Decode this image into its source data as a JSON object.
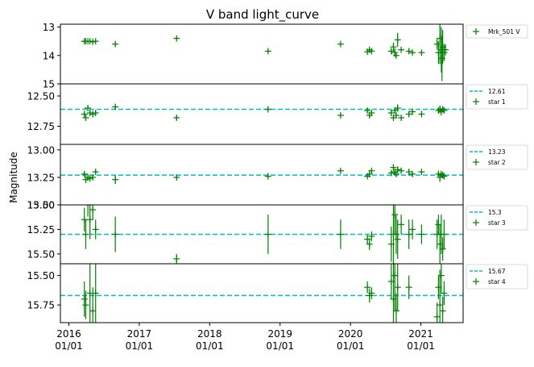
{
  "figure": {
    "title": "V band light_curve",
    "ylabel": "Magnitude",
    "x_tick_labels": [
      {
        "year": "2016",
        "day": "01/01",
        "date": 2016.0
      },
      {
        "year": "2017",
        "day": "01/01",
        "date": 2017.0
      },
      {
        "year": "2018",
        "day": "01/01",
        "date": 2018.0
      },
      {
        "year": "2019",
        "day": "01/01",
        "date": 2019.0
      },
      {
        "year": "2020",
        "day": "01/01",
        "date": 2020.0
      },
      {
        "year": "2021",
        "day": "01/01",
        "date": 2021.0
      }
    ],
    "x_range": [
      2015.88,
      2021.6
    ],
    "colors": {
      "points": "#008000",
      "reference": "#00bfbf",
      "frame": "#000000"
    }
  },
  "chart_data": [
    {
      "type": "scatter",
      "legend": {
        "placement": "outside-right",
        "entries": [
          "Mrk_501 V"
        ]
      },
      "ylim": [
        15.0,
        12.9
      ],
      "inverted_y": true,
      "y_ticks": [
        13,
        14,
        15
      ],
      "y_tick_labels": [
        "13",
        "14",
        "15"
      ],
      "reference_line": null,
      "series": [
        {
          "name": "Mrk_501 V",
          "points": [
            {
              "x": 2016.22,
              "y": 13.5,
              "err": 0.04
            },
            {
              "x": 2016.24,
              "y": 13.5,
              "err": 0.04
            },
            {
              "x": 2016.27,
              "y": 13.5,
              "err": 0.04
            },
            {
              "x": 2016.3,
              "y": 13.5,
              "err": 0.04
            },
            {
              "x": 2016.34,
              "y": 13.52,
              "err": 0.04
            },
            {
              "x": 2016.38,
              "y": 13.5,
              "err": 0.04
            },
            {
              "x": 2016.66,
              "y": 13.6,
              "err": 0.05
            },
            {
              "x": 2017.53,
              "y": 13.4,
              "err": 0.05
            },
            {
              "x": 2018.83,
              "y": 13.85,
              "err": 0.05
            },
            {
              "x": 2019.86,
              "y": 13.6,
              "err": 0.05
            },
            {
              "x": 2020.24,
              "y": 13.87,
              "err": 0.05
            },
            {
              "x": 2020.27,
              "y": 13.8,
              "err": 0.05
            },
            {
              "x": 2020.3,
              "y": 13.85,
              "err": 0.05
            },
            {
              "x": 2020.58,
              "y": 13.85,
              "err": 0.1
            },
            {
              "x": 2020.61,
              "y": 13.7,
              "err": 0.15
            },
            {
              "x": 2020.63,
              "y": 13.9,
              "err": 0.15
            },
            {
              "x": 2020.65,
              "y": 14.0,
              "err": 0.1
            },
            {
              "x": 2020.67,
              "y": 13.45,
              "err": 0.25
            },
            {
              "x": 2020.72,
              "y": 13.8,
              "err": 0.05
            },
            {
              "x": 2020.83,
              "y": 13.85,
              "err": 0.05
            },
            {
              "x": 2020.88,
              "y": 13.9,
              "err": 0.05
            },
            {
              "x": 2021.01,
              "y": 13.9,
              "err": 0.05
            },
            {
              "x": 2021.23,
              "y": 13.6,
              "err": 0.2
            },
            {
              "x": 2021.25,
              "y": 13.9,
              "err": 0.4
            },
            {
              "x": 2021.27,
              "y": 13.4,
              "err": 0.9
            },
            {
              "x": 2021.29,
              "y": 13.8,
              "err": 0.8
            },
            {
              "x": 2021.3,
              "y": 14.1,
              "err": 0.8
            },
            {
              "x": 2021.31,
              "y": 13.7,
              "err": 0.6
            },
            {
              "x": 2021.33,
              "y": 13.9,
              "err": 0.3
            },
            {
              "x": 2021.35,
              "y": 13.8,
              "err": 0.2
            }
          ]
        }
      ]
    },
    {
      "type": "scatter",
      "legend": {
        "placement": "outside-right",
        "entries": [
          "12.61",
          "star 1"
        ]
      },
      "ylim": [
        12.9,
        12.4
      ],
      "inverted_y": true,
      "y_ticks": [
        12.5,
        12.75
      ],
      "y_tick_labels": [
        "12.50",
        "12.75"
      ],
      "reference_line": {
        "name": "12.61",
        "y": 12.61
      },
      "series": [
        {
          "name": "star 1",
          "points": [
            {
              "x": 2016.22,
              "y": 12.65,
              "err": 0.02
            },
            {
              "x": 2016.24,
              "y": 12.68,
              "err": 0.02
            },
            {
              "x": 2016.27,
              "y": 12.6,
              "err": 0.02
            },
            {
              "x": 2016.3,
              "y": 12.64,
              "err": 0.02
            },
            {
              "x": 2016.34,
              "y": 12.65,
              "err": 0.02
            },
            {
              "x": 2016.38,
              "y": 12.64,
              "err": 0.02
            },
            {
              "x": 2016.66,
              "y": 12.59,
              "err": 0.02
            },
            {
              "x": 2017.53,
              "y": 12.68,
              "err": 0.02
            },
            {
              "x": 2018.83,
              "y": 12.61,
              "err": 0.02
            },
            {
              "x": 2019.86,
              "y": 12.66,
              "err": 0.02
            },
            {
              "x": 2020.24,
              "y": 12.62,
              "err": 0.02
            },
            {
              "x": 2020.27,
              "y": 12.66,
              "err": 0.02
            },
            {
              "x": 2020.3,
              "y": 12.64,
              "err": 0.02
            },
            {
              "x": 2020.58,
              "y": 12.64,
              "err": 0.02
            },
            {
              "x": 2020.61,
              "y": 12.68,
              "err": 0.02
            },
            {
              "x": 2020.63,
              "y": 12.62,
              "err": 0.02
            },
            {
              "x": 2020.65,
              "y": 12.66,
              "err": 0.02
            },
            {
              "x": 2020.67,
              "y": 12.6,
              "err": 0.03
            },
            {
              "x": 2020.72,
              "y": 12.68,
              "err": 0.02
            },
            {
              "x": 2020.83,
              "y": 12.65,
              "err": 0.02
            },
            {
              "x": 2020.88,
              "y": 12.63,
              "err": 0.02
            },
            {
              "x": 2021.01,
              "y": 12.65,
              "err": 0.02
            },
            {
              "x": 2021.25,
              "y": 12.62,
              "err": 0.02
            },
            {
              "x": 2021.27,
              "y": 12.61,
              "err": 0.03
            },
            {
              "x": 2021.29,
              "y": 12.63,
              "err": 0.03
            },
            {
              "x": 2021.31,
              "y": 12.61,
              "err": 0.02
            },
            {
              "x": 2021.33,
              "y": 12.62,
              "err": 0.02
            }
          ]
        }
      ]
    },
    {
      "type": "scatter",
      "legend": {
        "placement": "outside-right",
        "entries": [
          "13.23",
          "star 2"
        ]
      },
      "ylim": [
        13.5,
        12.95
      ],
      "inverted_y": true,
      "y_ticks": [
        13.0,
        13.25,
        13.5
      ],
      "y_tick_labels": [
        "13.00",
        "13.25",
        "13.50"
      ],
      "reference_line": {
        "name": "13.23",
        "y": 13.23
      },
      "series": [
        {
          "name": "star 2",
          "points": [
            {
              "x": 2016.22,
              "y": 13.22,
              "err": 0.02
            },
            {
              "x": 2016.24,
              "y": 13.27,
              "err": 0.03
            },
            {
              "x": 2016.27,
              "y": 13.25,
              "err": 0.03
            },
            {
              "x": 2016.3,
              "y": 13.26,
              "err": 0.02
            },
            {
              "x": 2016.34,
              "y": 13.25,
              "err": 0.02
            },
            {
              "x": 2016.38,
              "y": 13.2,
              "err": 0.02
            },
            {
              "x": 2016.66,
              "y": 13.27,
              "err": 0.04
            },
            {
              "x": 2017.53,
              "y": 13.25,
              "err": 0.02
            },
            {
              "x": 2018.83,
              "y": 13.24,
              "err": 0.03
            },
            {
              "x": 2019.86,
              "y": 13.19,
              "err": 0.02
            },
            {
              "x": 2020.24,
              "y": 13.24,
              "err": 0.02
            },
            {
              "x": 2020.27,
              "y": 13.22,
              "err": 0.02
            },
            {
              "x": 2020.3,
              "y": 13.19,
              "err": 0.02
            },
            {
              "x": 2020.58,
              "y": 13.21,
              "err": 0.02
            },
            {
              "x": 2020.61,
              "y": 13.16,
              "err": 0.03
            },
            {
              "x": 2020.63,
              "y": 13.2,
              "err": 0.02
            },
            {
              "x": 2020.65,
              "y": 13.22,
              "err": 0.02
            },
            {
              "x": 2020.67,
              "y": 13.18,
              "err": 0.03
            },
            {
              "x": 2020.72,
              "y": 13.19,
              "err": 0.02
            },
            {
              "x": 2020.83,
              "y": 13.2,
              "err": 0.02
            },
            {
              "x": 2020.88,
              "y": 13.22,
              "err": 0.02
            },
            {
              "x": 2021.01,
              "y": 13.2,
              "err": 0.02
            },
            {
              "x": 2021.25,
              "y": 13.22,
              "err": 0.03
            },
            {
              "x": 2021.27,
              "y": 13.25,
              "err": 0.04
            },
            {
              "x": 2021.29,
              "y": 13.22,
              "err": 0.03
            },
            {
              "x": 2021.31,
              "y": 13.23,
              "err": 0.03
            },
            {
              "x": 2021.33,
              "y": 13.24,
              "err": 0.02
            }
          ]
        }
      ]
    },
    {
      "type": "scatter",
      "legend": {
        "placement": "outside-right",
        "entries": [
          "15.3",
          "star 3"
        ]
      },
      "ylim": [
        15.6,
        15.0
      ],
      "inverted_y": true,
      "y_ticks": [
        15.0,
        15.25,
        15.5
      ],
      "y_tick_labels": [
        "15.00",
        "15.25",
        "15.50"
      ],
      "reference_line": {
        "name": "15.3",
        "y": 15.3
      },
      "series": [
        {
          "name": "star 3",
          "points": [
            {
              "x": 2016.22,
              "y": 15.15,
              "err": 0.12
            },
            {
              "x": 2016.24,
              "y": 15.3,
              "err": 0.15
            },
            {
              "x": 2016.27,
              "y": 15.0,
              "err": 0.12
            },
            {
              "x": 2016.3,
              "y": 15.15,
              "err": 0.2
            },
            {
              "x": 2016.34,
              "y": 15.05,
              "err": 0.1
            },
            {
              "x": 2016.38,
              "y": 15.25,
              "err": 0.1
            },
            {
              "x": 2016.66,
              "y": 15.3,
              "err": 0.18
            },
            {
              "x": 2017.53,
              "y": 15.55,
              "err": 0.05
            },
            {
              "x": 2018.83,
              "y": 15.3,
              "err": 0.2
            },
            {
              "x": 2019.86,
              "y": 15.3,
              "err": 0.15
            },
            {
              "x": 2020.24,
              "y": 15.35,
              "err": 0.05
            },
            {
              "x": 2020.27,
              "y": 15.4,
              "err": 0.06
            },
            {
              "x": 2020.3,
              "y": 15.32,
              "err": 0.05
            },
            {
              "x": 2020.58,
              "y": 15.4,
              "err": 0.18
            },
            {
              "x": 2020.61,
              "y": 15.3,
              "err": 0.3
            },
            {
              "x": 2020.63,
              "y": 15.1,
              "err": 0.2
            },
            {
              "x": 2020.65,
              "y": 15.3,
              "err": 0.2
            },
            {
              "x": 2020.67,
              "y": 15.35,
              "err": 0.2
            },
            {
              "x": 2020.72,
              "y": 15.2,
              "err": 0.1
            },
            {
              "x": 2020.83,
              "y": 15.3,
              "err": 0.15
            },
            {
              "x": 2020.88,
              "y": 15.25,
              "err": 0.1
            },
            {
              "x": 2021.01,
              "y": 15.3,
              "err": 0.1
            },
            {
              "x": 2021.23,
              "y": 15.3,
              "err": 0.15
            },
            {
              "x": 2021.25,
              "y": 15.2,
              "err": 0.1
            },
            {
              "x": 2021.27,
              "y": 15.4,
              "err": 0.2
            },
            {
              "x": 2021.29,
              "y": 15.3,
              "err": 0.2
            },
            {
              "x": 2021.31,
              "y": 15.45,
              "err": 0.12
            },
            {
              "x": 2021.33,
              "y": 15.3,
              "err": 0.15
            }
          ]
        }
      ]
    },
    {
      "type": "scatter",
      "legend": {
        "placement": "outside-right",
        "entries": [
          "15.67",
          "star 4"
        ]
      },
      "ylim": [
        15.9,
        15.4
      ],
      "inverted_y": true,
      "y_ticks": [
        15.5,
        15.75
      ],
      "y_tick_labels": [
        "15.50",
        "15.75"
      ],
      "reference_line": {
        "name": "15.67",
        "y": 15.67
      },
      "series": [
        {
          "name": "star 4",
          "points": [
            {
              "x": 2016.22,
              "y": 15.7,
              "err": 0.15
            },
            {
              "x": 2016.24,
              "y": 15.75,
              "err": 0.12
            },
            {
              "x": 2016.3,
              "y": 15.65,
              "err": 0.25
            },
            {
              "x": 2016.34,
              "y": 15.8,
              "err": 0.2
            },
            {
              "x": 2016.38,
              "y": 15.65,
              "err": 0.3
            },
            {
              "x": 2020.24,
              "y": 15.6,
              "err": 0.05
            },
            {
              "x": 2020.27,
              "y": 15.67,
              "err": 0.06
            },
            {
              "x": 2020.3,
              "y": 15.65,
              "err": 0.05
            },
            {
              "x": 2020.58,
              "y": 15.55,
              "err": 0.15
            },
            {
              "x": 2020.61,
              "y": 15.7,
              "err": 0.35
            },
            {
              "x": 2020.63,
              "y": 15.5,
              "err": 0.3
            },
            {
              "x": 2020.65,
              "y": 15.8,
              "err": 0.15
            },
            {
              "x": 2020.67,
              "y": 15.6,
              "err": 0.2
            },
            {
              "x": 2020.83,
              "y": 15.6,
              "err": 0.1
            },
            {
              "x": 2021.23,
              "y": 15.85,
              "err": 0.12
            },
            {
              "x": 2021.25,
              "y": 15.6,
              "err": 0.1
            },
            {
              "x": 2021.27,
              "y": 15.75,
              "err": 0.3
            },
            {
              "x": 2021.29,
              "y": 15.5,
              "err": 0.15
            },
            {
              "x": 2021.31,
              "y": 15.8,
              "err": 0.12
            },
            {
              "x": 2021.33,
              "y": 15.65,
              "err": 0.1
            }
          ]
        }
      ]
    }
  ]
}
